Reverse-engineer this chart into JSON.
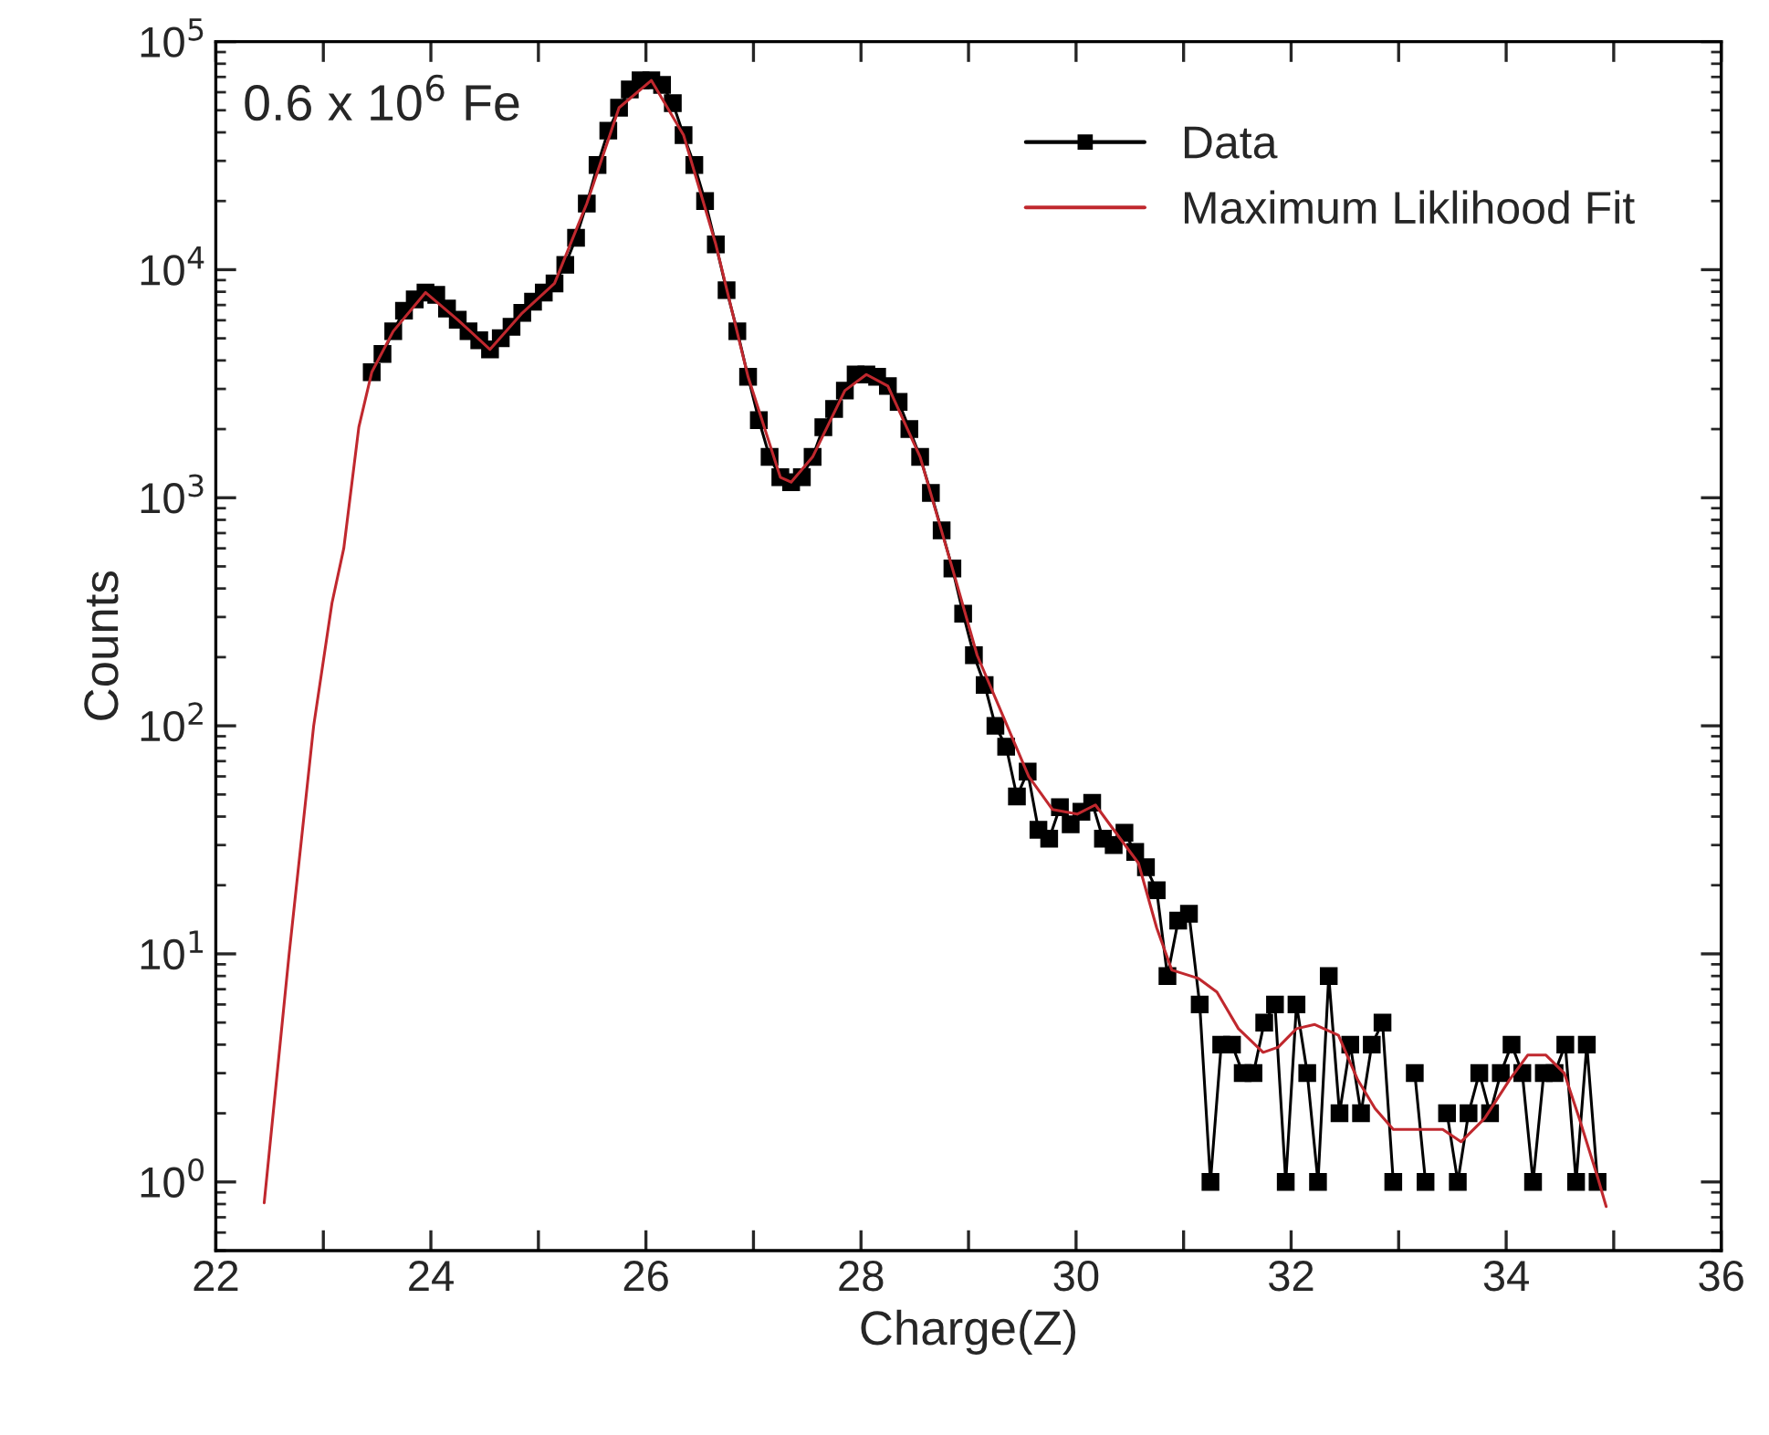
{
  "chart_data": {
    "type": "line",
    "xlabel": "Charge(Z)",
    "ylabel": "Counts",
    "log": "y",
    "annotations": [
      "0.6 x 10$^{6}$ Fe"
    ],
    "xlim": [
      22,
      36
    ],
    "ylim": [
      0.5,
      100000
    ],
    "xticks": [
      22,
      {
        "value": 23,
        "label": null
      },
      24,
      {
        "value": 25,
        "label": null
      },
      26,
      {
        "value": 27,
        "label": null
      },
      28,
      {
        "value": 29,
        "label": null
      },
      30,
      {
        "value": 31,
        "label": null
      },
      32,
      {
        "value": 33,
        "label": null
      },
      34,
      {
        "value": 35,
        "label": null
      },
      36
    ],
    "yticks": [
      {
        "value": 1,
        "label": "10$^{0}$"
      },
      {
        "value": 10,
        "label": "10$^{1}$"
      },
      {
        "value": 100,
        "label": "10$^{2}$"
      },
      {
        "value": 1000,
        "label": "10$^{3}$"
      },
      {
        "value": 10000,
        "label": "10$^{4}$"
      },
      {
        "value": 100000,
        "label": "10$^{5}$"
      }
    ],
    "grid": false,
    "legend": "top right",
    "series": [
      {
        "name": "Data",
        "color": "#000000",
        "marker": "square",
        "line_style": "solid",
        "x": [
          23.45,
          23.55,
          23.65,
          23.75,
          23.85,
          23.95,
          24.05,
          24.15,
          24.25,
          24.35,
          24.45,
          24.55,
          24.65,
          24.75,
          24.85,
          24.95,
          25.05,
          25.15,
          25.25,
          25.35,
          25.45,
          25.55,
          25.65,
          25.75,
          25.85,
          25.95,
          26.05,
          26.15,
          26.25,
          26.35,
          26.45,
          26.55,
          26.65,
          26.75,
          26.85,
          26.95,
          27.05,
          27.15,
          27.25,
          27.35,
          27.45,
          27.55,
          27.65,
          27.75,
          27.85,
          27.95,
          28.05,
          28.15,
          28.25,
          28.35,
          28.45,
          28.55,
          28.65,
          28.75,
          28.85,
          28.95,
          29.05,
          29.15,
          29.25,
          29.35,
          29.45,
          29.55,
          29.65,
          29.75,
          29.85,
          29.95,
          30.05,
          30.15,
          30.25,
          30.35,
          30.45,
          30.55,
          30.65,
          30.75,
          30.85,
          30.95,
          31.05,
          31.15,
          31.25,
          31.35,
          31.45,
          31.55,
          31.65,
          31.75,
          31.85,
          31.95,
          32.05,
          32.15,
          32.25,
          32.35,
          32.45,
          32.55,
          32.65,
          32.75,
          32.85,
          32.95,
          33.05,
          33.15,
          33.25,
          33.35,
          33.45,
          33.55,
          33.65,
          33.75,
          33.85,
          33.95,
          34.05,
          34.15,
          34.25,
          34.35,
          34.45,
          34.55,
          34.65,
          34.75,
          34.85
        ],
        "values": [
          3550,
          4270,
          5370,
          6610,
          7410,
          7940,
          7760,
          6760,
          6030,
          5370,
          4900,
          4470,
          5010,
          5620,
          6460,
          7240,
          7940,
          8710,
          10500,
          13800,
          19500,
          28800,
          40700,
          51300,
          61700,
          67600,
          67600,
          64600,
          53700,
          38900,
          28800,
          20000,
          12900,
          8130,
          5370,
          3390,
          2190,
          1510,
          1230,
          1170,
          1230,
          1510,
          2040,
          2450,
          2950,
          3470,
          3470,
          3390,
          3090,
          2630,
          2000,
          1510,
          1050,
          720,
          490,
          310,
          204,
          151,
          100,
          81,
          49,
          63,
          35,
          32,
          44,
          37,
          42,
          46,
          32,
          30,
          34,
          28,
          24,
          19,
          8,
          14,
          15,
          6,
          1,
          4,
          4,
          3,
          3,
          5,
          6,
          1,
          6,
          3,
          1,
          8,
          2,
          4,
          2,
          4,
          5,
          1,
          null,
          3,
          1,
          null,
          2,
          1,
          2,
          3,
          2,
          3,
          4,
          3,
          1,
          3,
          3,
          4,
          1,
          4,
          1
        ]
      },
      {
        "name": "Maximum Liklihood Fit",
        "color": "#c0282e",
        "marker": "none",
        "line_style": "solid",
        "x": [
          22.45,
          22.68,
          22.91,
          23.08,
          23.19,
          23.33,
          23.45,
          23.65,
          23.95,
          24.25,
          24.55,
          24.85,
          25.15,
          25.45,
          25.75,
          26.05,
          26.35,
          26.65,
          26.95,
          27.25,
          27.35,
          27.55,
          27.85,
          28.05,
          28.25,
          28.55,
          28.85,
          29.08,
          29.56,
          29.78,
          30.01,
          30.18,
          30.35,
          30.58,
          30.75,
          30.89,
          31.14,
          31.31,
          31.51,
          31.74,
          31.88,
          32.05,
          32.22,
          32.44,
          32.62,
          32.78,
          32.95,
          33.18,
          33.41,
          33.58,
          33.8,
          34.03,
          34.2,
          34.37,
          34.54,
          34.68,
          34.85,
          34.93
        ],
        "values": [
          0.81,
          9.8,
          100,
          345,
          600,
          2040,
          3550,
          5370,
          7940,
          6030,
          4470,
          6460,
          8710,
          19500,
          51300,
          67600,
          38900,
          12900,
          3390,
          1230,
          1170,
          1510,
          2950,
          3470,
          3090,
          1510,
          490,
          204,
          60,
          43,
          41,
          45,
          35,
          25,
          13,
          8.5,
          7.8,
          6.8,
          4.7,
          3.7,
          3.9,
          4.7,
          4.9,
          4.4,
          2.8,
          2.1,
          1.7,
          1.7,
          1.7,
          1.5,
          1.9,
          2.8,
          3.6,
          3.6,
          3,
          1.9,
          1.05,
          0.78
        ]
      }
    ]
  }
}
